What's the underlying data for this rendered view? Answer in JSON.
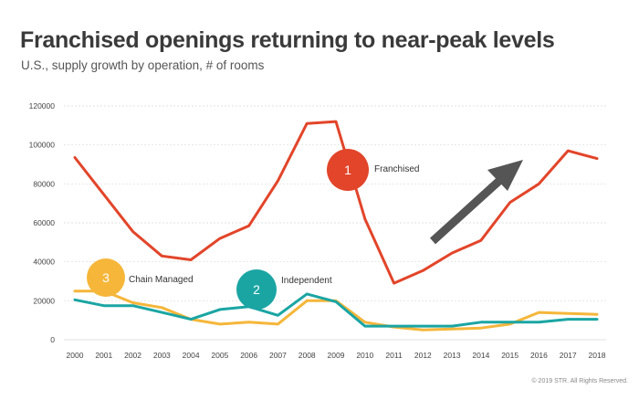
{
  "header": {
    "title": "Franchised openings returning to near-peak levels",
    "subtitle": "U.S., supply growth by operation, # of rooms"
  },
  "footer": {
    "copyright": "© 2019 STR. All Rights Reserved."
  },
  "colors": {
    "franchised": "#e2452a",
    "chain_managed": "#f5b63a",
    "independent": "#1aa5a3",
    "grid": "#d9d9d9",
    "arrow": "#555555"
  },
  "chart_data": {
    "type": "line",
    "title": "Franchised openings returning to near-peak levels",
    "subtitle": "U.S., supply growth by operation, # of rooms",
    "x": [
      "2000",
      "2001",
      "2002",
      "2003",
      "2004",
      "2005",
      "2006",
      "2007",
      "2008",
      "2009",
      "2010",
      "2011",
      "2012",
      "2013",
      "2014",
      "2015",
      "2016",
      "2017",
      "2018"
    ],
    "ylim": [
      0,
      120000
    ],
    "yticks": [
      0,
      20000,
      40000,
      60000,
      80000,
      100000,
      120000
    ],
    "ytick_labels": [
      "0",
      "20000",
      "40000",
      "60000",
      "80000",
      "100000",
      "120000"
    ],
    "grid": "horizontal",
    "legend": "inline labels with numbered badges",
    "series": [
      {
        "name": "Franchised",
        "badge": "1",
        "color": "#e2452a",
        "values": [
          93500,
          74500,
          55500,
          43000,
          41000,
          52000,
          58500,
          81500,
          111000,
          112000,
          62000,
          29000,
          35500,
          44500,
          51000,
          70500,
          80000,
          97000,
          93000
        ]
      },
      {
        "name": "Independent",
        "badge": "2",
        "color": "#1aa5a3",
        "values": [
          20500,
          17500,
          17500,
          14000,
          10500,
          15500,
          17000,
          12500,
          23500,
          19500,
          7000,
          7000,
          7000,
          7000,
          9000,
          9000,
          9000,
          10500,
          10500
        ]
      },
      {
        "name": "Chain Managed",
        "badge": "3",
        "color": "#f5b63a",
        "values": [
          25000,
          25000,
          19000,
          16500,
          10500,
          8000,
          9000,
          8000,
          20000,
          20000,
          9000,
          6500,
          5000,
          5500,
          6000,
          8000,
          14000,
          13500,
          13000
        ]
      }
    ],
    "annotations": [
      "upward trend arrow"
    ]
  }
}
